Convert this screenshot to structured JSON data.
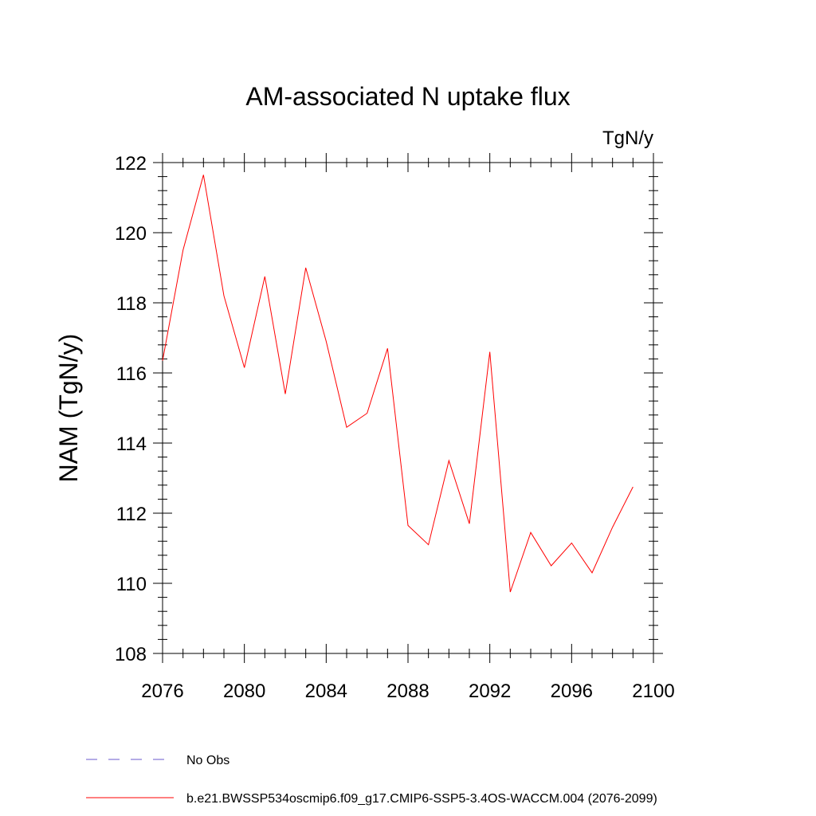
{
  "chart_data": {
    "type": "line",
    "title": "AM-associated N uptake flux",
    "units_label": "TgN/y",
    "xlabel": "",
    "ylabel": "NAM  (TgN/y)",
    "xlim": [
      2076,
      2100
    ],
    "ylim": [
      108,
      122
    ],
    "x_major_ticks": [
      2076,
      2080,
      2084,
      2088,
      2092,
      2096,
      2100
    ],
    "x_minor_step": 1,
    "y_major_ticks": [
      108,
      110,
      112,
      114,
      116,
      118,
      120,
      122
    ],
    "y_minor_step": 0.4,
    "series": [
      {
        "name": "b.e21.BWSSP534oscmip6.f09_g17.CMIP6-SSP5-3.4OS-WACCM.004 (2076-2099)",
        "color": "#ff0000",
        "x": [
          2076,
          2077,
          2078,
          2079,
          2080,
          2081,
          2082,
          2083,
          2084,
          2085,
          2086,
          2087,
          2088,
          2089,
          2090,
          2091,
          2092,
          2093,
          2094,
          2095,
          2096,
          2097,
          2098,
          2099
        ],
        "values": [
          116.35,
          119.5,
          121.65,
          118.2,
          116.15,
          118.75,
          115.4,
          119.0,
          116.9,
          114.45,
          114.85,
          116.7,
          111.65,
          111.1,
          113.5,
          111.7,
          116.6,
          109.75,
          111.45,
          110.5,
          111.15,
          110.3,
          111.6,
          112.75
        ]
      }
    ],
    "legend": [
      {
        "label": "No Obs",
        "style": "dashed",
        "color": "#6a5acd"
      },
      {
        "label": "b.e21.BWSSP534oscmip6.f09_g17.CMIP6-SSP5-3.4OS-WACCM.004 (2076-2099)",
        "style": "solid",
        "color": "#ff0000"
      }
    ]
  }
}
